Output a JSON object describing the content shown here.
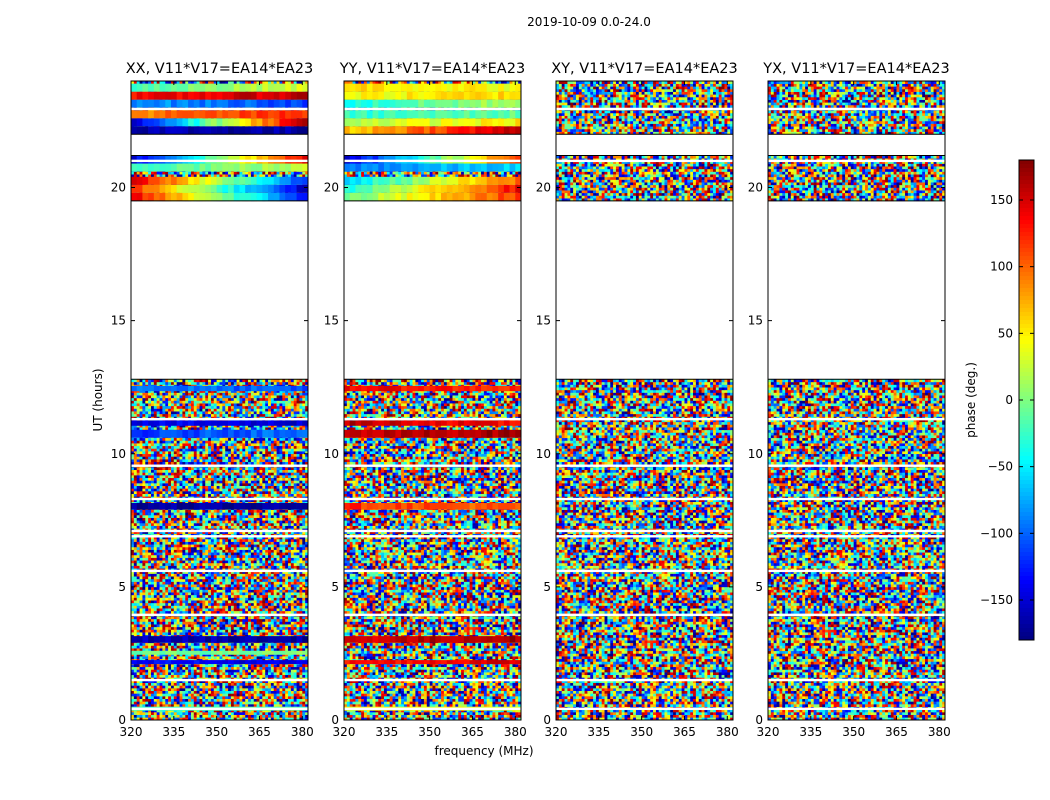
{
  "chart_data": {
    "type": "heatmap",
    "title": "2019-10-09 0.0-24.0",
    "xlabel": "frequency (MHz)",
    "ylabel": "UT (hours)",
    "xlim": [
      320,
      382
    ],
    "ylim": [
      0,
      24
    ],
    "xticks": [
      "320",
      "335",
      "350",
      "365",
      "380"
    ],
    "yticks": [
      "0",
      "5",
      "10",
      "15",
      "20"
    ],
    "colorbar": {
      "label": "phase (deg.)",
      "range": [
        -180,
        180
      ],
      "colormap": "jet",
      "ticks": [
        "−150",
        "−100",
        "−50",
        "0",
        "50",
        "100",
        "150"
      ]
    },
    "panels": [
      {
        "title": "XX, V11*V17=EA14*EA23",
        "coherent_rows": [
          {
            "t": [
              0.35,
              0.5
            ],
            "f": [
              320,
              382
            ],
            "v": [
              -20,
              -20
            ]
          },
          {
            "t": [
              2.1,
              2.25
            ],
            "f": [
              320,
              382
            ],
            "v": [
              -130,
              -150
            ]
          },
          {
            "t": [
              2.45,
              2.6
            ],
            "f": [
              320,
              382
            ],
            "v": [
              -10,
              0
            ]
          },
          {
            "t": [
              2.9,
              3.15
            ],
            "f": [
              320,
              382
            ],
            "v": [
              -160,
              -170
            ]
          },
          {
            "t": [
              7.9,
              8.15
            ],
            "f": [
              320,
              382
            ],
            "v": [
              -170,
              -175
            ]
          },
          {
            "t": [
              10.6,
              10.9
            ],
            "f": [
              320,
              382
            ],
            "v": [
              -120,
              -90
            ]
          },
          {
            "t": [
              11.05,
              11.25
            ],
            "f": [
              320,
              382
            ],
            "v": [
              -140,
              -150
            ]
          },
          {
            "t": [
              12.35,
              12.55
            ],
            "f": [
              320,
              382
            ],
            "v": [
              -90,
              -110
            ]
          },
          {
            "t": [
              19.5,
              19.8
            ],
            "f": [
              320,
              382
            ],
            "v": [
              140,
              -130
            ]
          },
          {
            "t": [
              19.8,
              20.1
            ],
            "f": [
              320,
              382
            ],
            "v": [
              120,
              -160
            ]
          },
          {
            "t": [
              20.1,
              20.4
            ],
            "f": [
              320,
              382
            ],
            "v": [
              150,
              -120
            ]
          },
          {
            "t": [
              20.6,
              20.9
            ],
            "f": [
              320,
              382
            ],
            "v": [
              -20,
              20
            ]
          },
          {
            "t": [
              20.9,
              21.2
            ],
            "f": [
              320,
              382
            ],
            "v": [
              -150,
              150
            ]
          },
          {
            "t": [
              22.0,
              22.3
            ],
            "f": [
              320,
              382
            ],
            "v": [
              -160,
              -170
            ]
          },
          {
            "t": [
              22.3,
              22.6
            ],
            "f": [
              320,
              382
            ],
            "v": [
              -150,
              170
            ]
          },
          {
            "t": [
              22.6,
              22.9
            ],
            "f": [
              320,
              382
            ],
            "v": [
              90,
              120
            ]
          },
          {
            "t": [
              23.0,
              23.3
            ],
            "f": [
              320,
              382
            ],
            "v": [
              -80,
              -110
            ]
          },
          {
            "t": [
              23.3,
              23.6
            ],
            "f": [
              320,
              382
            ],
            "v": [
              130,
              160
            ]
          },
          {
            "t": [
              23.6,
              23.9
            ],
            "f": [
              320,
              382
            ],
            "v": [
              -20,
              30
            ]
          }
        ]
      },
      {
        "title": "YY, V11*V17=EA14*EA23",
        "coherent_rows": [
          {
            "t": [
              0.35,
              0.5
            ],
            "f": [
              320,
              382
            ],
            "v": [
              40,
              40
            ]
          },
          {
            "t": [
              2.1,
              2.25
            ],
            "f": [
              320,
              382
            ],
            "v": [
              130,
              150
            ]
          },
          {
            "t": [
              2.9,
              3.15
            ],
            "f": [
              320,
              382
            ],
            "v": [
              150,
              170
            ]
          },
          {
            "t": [
              7.9,
              8.15
            ],
            "f": [
              320,
              382
            ],
            "v": [
              120,
              100
            ]
          },
          {
            "t": [
              10.6,
              10.9
            ],
            "f": [
              320,
              382
            ],
            "v": [
              150,
              170
            ]
          },
          {
            "t": [
              11.05,
              11.25
            ],
            "f": [
              320,
              382
            ],
            "v": [
              160,
              130
            ]
          },
          {
            "t": [
              12.35,
              12.55
            ],
            "f": [
              320,
              382
            ],
            "v": [
              140,
              120
            ]
          },
          {
            "t": [
              19.5,
              19.8
            ],
            "f": [
              320,
              382
            ],
            "v": [
              -10,
              120
            ]
          },
          {
            "t": [
              19.8,
              20.1
            ],
            "f": [
              320,
              382
            ],
            "v": [
              -40,
              140
            ]
          },
          {
            "t": [
              20.1,
              20.4
            ],
            "f": [
              320,
              382
            ],
            "v": [
              -60,
              100
            ]
          },
          {
            "t": [
              20.6,
              20.9
            ],
            "f": [
              320,
              382
            ],
            "v": [
              -90,
              -60
            ]
          },
          {
            "t": [
              20.9,
              21.2
            ],
            "f": [
              320,
              382
            ],
            "v": [
              -160,
              120
            ]
          },
          {
            "t": [
              22.0,
              22.3
            ],
            "f": [
              320,
              382
            ],
            "v": [
              60,
              160
            ]
          },
          {
            "t": [
              22.3,
              22.6
            ],
            "f": [
              320,
              382
            ],
            "v": [
              20,
              50
            ]
          },
          {
            "t": [
              22.6,
              22.9
            ],
            "f": [
              320,
              382
            ],
            "v": [
              -30,
              -10
            ]
          },
          {
            "t": [
              23.0,
              23.3
            ],
            "f": [
              320,
              382
            ],
            "v": [
              -40,
              20
            ]
          },
          {
            "t": [
              23.3,
              23.6
            ],
            "f": [
              320,
              382
            ],
            "v": [
              40,
              60
            ]
          },
          {
            "t": [
              23.6,
              23.9
            ],
            "f": [
              320,
              382
            ],
            "v": [
              60,
              40
            ]
          }
        ]
      },
      {
        "title": "XY, V11*V17=EA14*EA23",
        "coherent_rows": []
      },
      {
        "title": "YX, V11*V17=EA14*EA23",
        "coherent_rows": []
      }
    ],
    "no_data_ranges": [
      [
        12.8,
        19.5
      ],
      [
        21.2,
        22.0
      ]
    ],
    "flagged_lines": [
      0.42,
      1.5,
      3.95,
      5.6,
      6.9,
      7.1,
      8.3,
      9.55,
      11.3,
      21.0,
      22.95
    ]
  }
}
